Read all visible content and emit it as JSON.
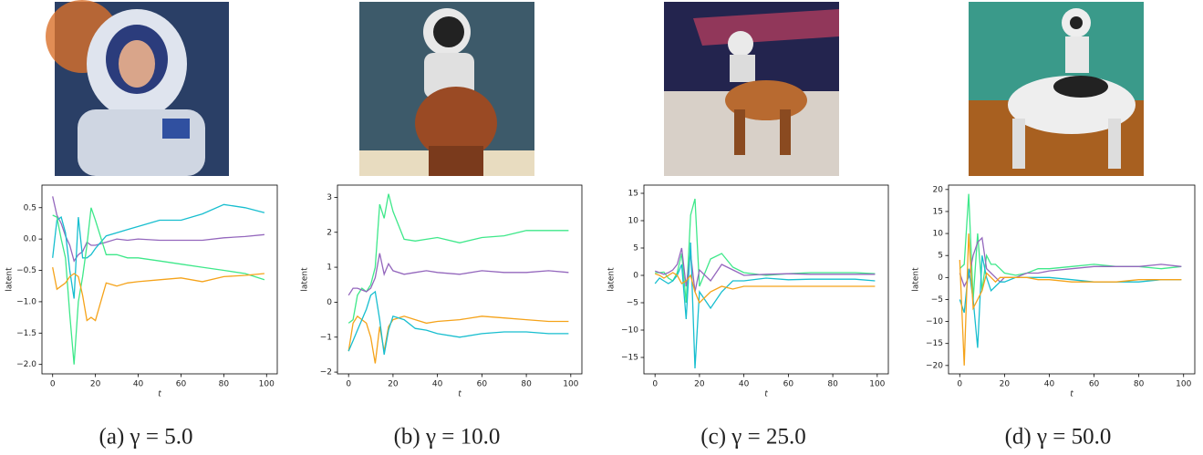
{
  "chart_data": [
    {
      "type": "line",
      "caption": "(a) γ = 5.0",
      "xlabel": "t",
      "ylabel": "latent",
      "x": [
        0,
        2,
        4,
        6,
        8,
        10,
        12,
        14,
        16,
        18,
        20,
        25,
        30,
        35,
        40,
        50,
        60,
        70,
        80,
        90,
        99
      ],
      "xlim": [
        -5,
        105
      ],
      "xticks": [
        0,
        20,
        40,
        60,
        80,
        100
      ],
      "ylim": [
        -2.15,
        0.86
      ],
      "yticks": [
        {
          "value": -2.0,
          "label": "−2.0"
        },
        {
          "value": -1.5,
          "label": "−1.5"
        },
        {
          "value": -1.0,
          "label": "−1.0"
        },
        {
          "value": -0.5,
          "label": "−0.5"
        },
        {
          "value": 0,
          "label": "0.0"
        },
        0.5
      ],
      "series": [
        {
          "color": "#9467bd",
          "values": [
            0.68,
            0.38,
            0.25,
            0.05,
            -0.1,
            -0.35,
            -0.25,
            -0.2,
            -0.05,
            -0.1,
            -0.1,
            -0.05,
            0.0,
            -0.02,
            0.0,
            -0.02,
            -0.02,
            -0.02,
            0.02,
            0.04,
            0.07
          ]
        },
        {
          "color": "#17becf",
          "values": [
            -0.3,
            0.3,
            0.35,
            0.1,
            -0.5,
            -0.95,
            0.35,
            -0.3,
            -0.3,
            -0.25,
            -0.15,
            0.05,
            0.1,
            0.15,
            0.2,
            0.3,
            0.3,
            0.4,
            0.55,
            0.5,
            0.42
          ]
        },
        {
          "color": "#3ee88a",
          "values": [
            0.38,
            0.35,
            0.0,
            -0.3,
            -1.2,
            -2.0,
            -1.0,
            -0.6,
            -0.1,
            0.5,
            0.3,
            -0.25,
            -0.25,
            -0.3,
            -0.3,
            -0.35,
            -0.4,
            -0.45,
            -0.5,
            -0.55,
            -0.65
          ]
        },
        {
          "color": "#f5a31a",
          "values": [
            -0.45,
            -0.8,
            -0.75,
            -0.7,
            -0.6,
            -0.55,
            -0.6,
            -0.9,
            -1.3,
            -1.25,
            -1.3,
            -0.7,
            -0.75,
            -0.7,
            -0.68,
            -0.65,
            -0.62,
            -0.68,
            -0.6,
            -0.58,
            -0.55
          ]
        }
      ]
    },
    {
      "type": "line",
      "caption": "(b) γ = 10.0",
      "xlabel": "t",
      "ylabel": "latent",
      "x": [
        0,
        2,
        4,
        6,
        8,
        10,
        12,
        14,
        16,
        18,
        20,
        25,
        30,
        35,
        40,
        50,
        60,
        70,
        80,
        90,
        99
      ],
      "xlim": [
        -5,
        105
      ],
      "xticks": [
        0,
        20,
        40,
        60,
        80,
        100
      ],
      "ylim": [
        -2.05,
        3.35
      ],
      "yticks": [
        {
          "value": -2,
          "label": "−2"
        },
        {
          "value": -1,
          "label": "−1"
        },
        0,
        1,
        2,
        3
      ],
      "series": [
        {
          "color": "#3ee88a",
          "values": [
            -0.6,
            -0.5,
            0.2,
            0.4,
            0.3,
            0.5,
            1.0,
            2.8,
            2.4,
            3.1,
            2.6,
            1.8,
            1.75,
            1.8,
            1.85,
            1.7,
            1.85,
            1.9,
            2.05,
            2.05,
            2.05
          ]
        },
        {
          "color": "#9467bd",
          "values": [
            0.2,
            0.4,
            0.4,
            0.35,
            0.3,
            0.4,
            0.7,
            1.4,
            0.8,
            1.1,
            0.9,
            0.8,
            0.85,
            0.9,
            0.85,
            0.8,
            0.9,
            0.85,
            0.85,
            0.9,
            0.85
          ]
        },
        {
          "color": "#f5a31a",
          "values": [
            -1.4,
            -0.6,
            -0.4,
            -0.5,
            -0.6,
            -1.0,
            -1.75,
            -0.7,
            -1.4,
            -0.7,
            -0.5,
            -0.4,
            -0.5,
            -0.6,
            -0.55,
            -0.5,
            -0.4,
            -0.45,
            -0.5,
            -0.55,
            -0.55
          ]
        },
        {
          "color": "#17becf",
          "values": [
            -1.4,
            -1.1,
            -0.8,
            -0.5,
            -0.2,
            0.2,
            0.3,
            -0.5,
            -1.5,
            -0.8,
            -0.4,
            -0.5,
            -0.75,
            -0.8,
            -0.9,
            -1.0,
            -0.9,
            -0.85,
            -0.85,
            -0.9,
            -0.9
          ]
        }
      ]
    },
    {
      "type": "line",
      "caption": "(c) γ = 25.0",
      "xlabel": "t",
      "ylabel": "latent",
      "x": [
        0,
        2,
        4,
        6,
        8,
        10,
        12,
        14,
        16,
        18,
        20,
        25,
        30,
        35,
        40,
        50,
        60,
        70,
        80,
        90,
        99
      ],
      "xlim": [
        -5,
        105
      ],
      "xticks": [
        0,
        20,
        40,
        60,
        80,
        100
      ],
      "ylim": [
        -18,
        16.5
      ],
      "yticks": [
        {
          "value": -15,
          "label": "−15"
        },
        {
          "value": -10,
          "label": "−10"
        },
        {
          "value": -5,
          "label": "−5"
        },
        0,
        5,
        10,
        15
      ],
      "series": [
        {
          "color": "#3ee88a",
          "values": [
            0.5,
            0.5,
            0.6,
            -0.5,
            -1,
            0.5,
            4,
            -5,
            11,
            14,
            -2,
            3,
            4,
            1.5,
            0.5,
            0,
            0.3,
            0.5,
            0.5,
            0.5,
            0.3
          ]
        },
        {
          "color": "#9467bd",
          "values": [
            0.8,
            0.5,
            0.2,
            0.5,
            1,
            2,
            5,
            -2,
            4,
            -3,
            1,
            -1,
            2,
            1,
            0,
            0.2,
            0.3,
            0.2,
            0.2,
            0.2,
            0.2
          ]
        },
        {
          "color": "#17becf",
          "values": [
            -1.5,
            -0.5,
            -1,
            -1.5,
            -1,
            0,
            2,
            -8,
            6,
            -17,
            -3,
            -6,
            -3,
            -1,
            -1,
            -0.5,
            -0.8,
            -0.7,
            -0.7,
            -0.7,
            -1
          ]
        },
        {
          "color": "#f5a31a",
          "values": [
            0.3,
            0,
            -0.5,
            0,
            0.5,
            0,
            -1.5,
            -1,
            0,
            -3,
            -5,
            -3,
            -2,
            -2.5,
            -2,
            -2,
            -2,
            -2,
            -2,
            -2,
            -2
          ]
        }
      ]
    },
    {
      "type": "line",
      "caption": "(d) γ = 50.0",
      "xlabel": "t",
      "ylabel": "latent",
      "x": [
        0,
        2,
        4,
        6,
        8,
        10,
        12,
        14,
        16,
        18,
        20,
        25,
        30,
        35,
        40,
        50,
        60,
        70,
        80,
        90,
        99
      ],
      "xlim": [
        -5,
        105
      ],
      "xticks": [
        0,
        20,
        40,
        60,
        80,
        100
      ],
      "ylim": [
        -21.9,
        21
      ],
      "yticks": [
        {
          "value": -20,
          "label": "−20"
        },
        {
          "value": -15,
          "label": "−15"
        },
        {
          "value": -10,
          "label": "−10"
        },
        {
          "value": -5,
          "label": "−5"
        },
        0,
        5,
        10,
        15,
        20
      ],
      "series": [
        {
          "color": "#3ee88a",
          "values": [
            2,
            3,
            19,
            -5,
            10,
            -3,
            5,
            3,
            3,
            2,
            1,
            0.5,
            1,
            2,
            2,
            2.5,
            3,
            2.5,
            2.5,
            2,
            2.5
          ]
        },
        {
          "color": "#9467bd",
          "values": [
            1,
            -2,
            0,
            5,
            8,
            9,
            2,
            1,
            0,
            -1,
            0,
            0,
            1,
            1,
            1.5,
            2,
            2.5,
            2.5,
            2.5,
            3,
            2.5
          ]
        },
        {
          "color": "#17becf",
          "values": [
            -5,
            -8,
            2,
            -5,
            -16,
            5,
            0,
            -3,
            -2,
            -1,
            -1,
            0,
            0,
            0,
            0,
            -0.5,
            -1,
            -1,
            -1,
            -0.5,
            -0.5
          ]
        },
        {
          "color": "#f5a31a",
          "values": [
            4,
            -20,
            10,
            -7,
            -5,
            -3,
            1,
            0,
            -1,
            0,
            0,
            0,
            0,
            -0.5,
            -0.5,
            -1,
            -1,
            -1,
            -0.5,
            -0.5,
            -0.5
          ]
        }
      ]
    }
  ]
}
